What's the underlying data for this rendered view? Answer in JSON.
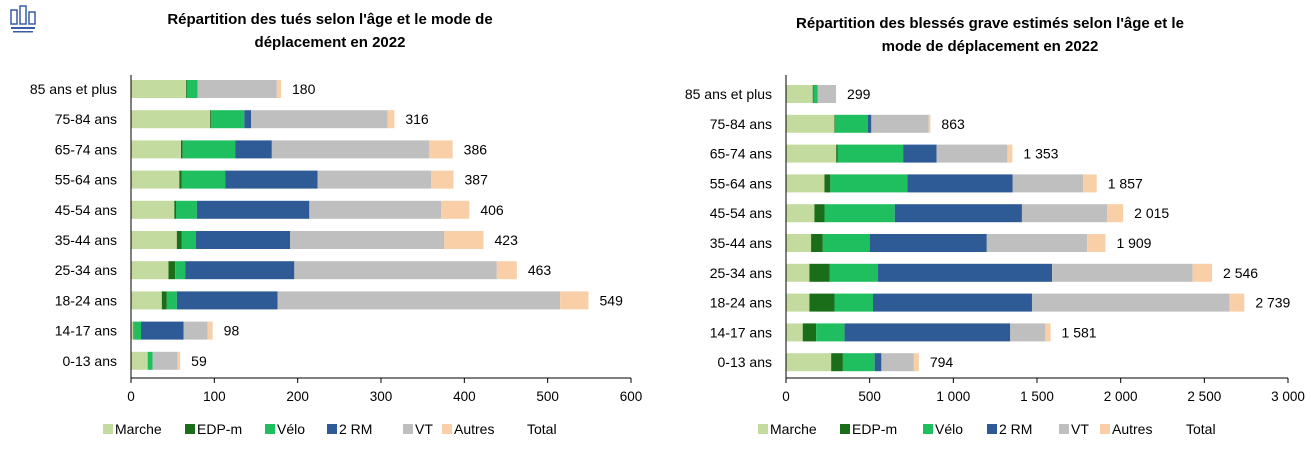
{
  "series_colors": {
    "Marche": "#c4dba0",
    "EDP-m": "#1a6e1a",
    "Vélo": "#1fbf5f",
    "2 RM": "#2e5a96",
    "VT": "#bfbfbf",
    "Autres": "#f9cfa8"
  },
  "chart_data": [
    {
      "type": "bar",
      "orientation": "horizontal",
      "stacked": true,
      "title": "Répartition des tués selon l'âge et le mode de déplacement en 2022",
      "title_lines": [
        "Répartition des tués selon l'âge et le mode de",
        "déplacement en 2022"
      ],
      "categories": [
        "85 ans et plus",
        "75-84 ans",
        "65-74 ans",
        "55-64 ans",
        "45-54 ans",
        "35-44 ans",
        "25-34 ans",
        "18-24 ans",
        "14-17 ans",
        "0-13 ans"
      ],
      "series": [
        {
          "name": "Marche",
          "values": [
            66,
            95,
            60,
            58,
            52,
            55,
            45,
            37,
            3,
            20
          ]
        },
        {
          "name": "EDP-m",
          "values": [
            1,
            1,
            2,
            3,
            2,
            6,
            8,
            6,
            1,
            0
          ]
        },
        {
          "name": "Vélo",
          "values": [
            13,
            40,
            63,
            52,
            25,
            17,
            12,
            12,
            8,
            6
          ]
        },
        {
          "name": "2 RM",
          "values": [
            0,
            8,
            44,
            111,
            135,
            113,
            131,
            121,
            51,
            0
          ]
        },
        {
          "name": "VT",
          "values": [
            95,
            164,
            189,
            136,
            158,
            185,
            243,
            339,
            29,
            30
          ]
        },
        {
          "name": "Autres",
          "values": [
            5,
            8,
            28,
            27,
            34,
            47,
            24,
            34,
            6,
            3
          ]
        }
      ],
      "totals": [
        "180",
        "316",
        "386",
        "387",
        "406",
        "423",
        "463",
        "549",
        "98",
        "59"
      ],
      "total_label": "Total",
      "xlim": [
        0,
        600
      ],
      "xticks": [
        0,
        100,
        200,
        300,
        400,
        500,
        600
      ],
      "xtick_labels": [
        "0",
        "100",
        "200",
        "300",
        "400",
        "500",
        "600"
      ],
      "legend_position": "bottom"
    },
    {
      "type": "bar",
      "orientation": "horizontal",
      "stacked": true,
      "title": "Répartition des blessés grave estimés selon l'âge et le mode de déplacement en 2022",
      "title_lines": [
        "Répartition des blessés grave estimés selon l'âge et le",
        "mode de déplacement en 2022"
      ],
      "categories": [
        "85 ans et plus",
        "75-84 ans",
        "65-74 ans",
        "55-64 ans",
        "45-54 ans",
        "35-44 ans",
        "25-34 ans",
        "18-24 ans",
        "14-17 ans",
        "0-13 ans"
      ],
      "series": [
        {
          "name": "Marche",
          "values": [
            160,
            290,
            300,
            230,
            170,
            150,
            140,
            140,
            100,
            270
          ]
        },
        {
          "name": "EDP-m",
          "values": [
            5,
            5,
            10,
            35,
            60,
            70,
            120,
            150,
            80,
            70
          ]
        },
        {
          "name": "Vélo",
          "values": [
            25,
            195,
            390,
            460,
            420,
            280,
            290,
            230,
            170,
            190
          ]
        },
        {
          "name": "2 RM",
          "values": [
            0,
            20,
            200,
            630,
            760,
            700,
            1040,
            950,
            990,
            40
          ]
        },
        {
          "name": "VT",
          "values": [
            109,
            343,
            423,
            420,
            510,
            600,
            840,
            1180,
            210,
            194
          ]
        },
        {
          "name": "Autres",
          "values": [
            0,
            10,
            30,
            82,
            95,
            109,
            116,
            89,
            31,
            30
          ]
        }
      ],
      "totals": [
        "299",
        "863",
        "1 353",
        "1 857",
        "2 015",
        "1 909",
        "2 546",
        "2 739",
        "1 581",
        "794"
      ],
      "total_label": "Total",
      "xlim": [
        0,
        3000
      ],
      "xticks": [
        0,
        500,
        1000,
        1500,
        2000,
        2500,
        3000
      ],
      "xtick_labels": [
        "0",
        "500",
        "1 000",
        "1 500",
        "2 000",
        "2 500",
        "3 000"
      ],
      "legend_position": "bottom"
    }
  ]
}
